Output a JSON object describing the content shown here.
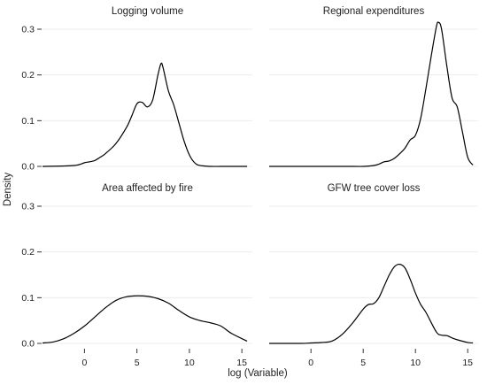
{
  "chart_data": {
    "type": "line",
    "layout": "facet-2x2",
    "xlabel": "log (Variable)",
    "ylabel": "Density",
    "xlim": [
      -4,
      16
    ],
    "ylim": [
      0,
      0.3
    ],
    "x_ticks": [
      0,
      5,
      10,
      15
    ],
    "y_ticks": [
      0.0,
      0.1,
      0.2,
      0.3
    ],
    "y_tick_labels": [
      "0.0",
      "0.1",
      "0.2",
      "0.3"
    ],
    "x_axis_shown_on": "bottom-row",
    "y_axis_shown_on": "left-column",
    "grid": "horizontal-light",
    "panels": [
      {
        "title": "Logging volume",
        "x": [
          -4,
          -1,
          0,
          0.5,
          1,
          1.5,
          2,
          3,
          4,
          4.5,
          5,
          5.5,
          6,
          6.5,
          7,
          7.3,
          7.5,
          8,
          8.5,
          9,
          9.5,
          10,
          10.5,
          11,
          12,
          13,
          14,
          15.5
        ],
        "y": [
          0,
          0.002,
          0.008,
          0.01,
          0.013,
          0.02,
          0.028,
          0.05,
          0.085,
          0.11,
          0.137,
          0.14,
          0.13,
          0.145,
          0.2,
          0.225,
          0.215,
          0.165,
          0.135,
          0.095,
          0.055,
          0.025,
          0.008,
          0.002,
          0,
          0,
          0,
          0
        ]
      },
      {
        "title": "Regional expenditures",
        "x": [
          -4,
          0,
          4,
          5,
          6,
          6.5,
          7,
          7.5,
          8,
          8.5,
          9,
          9.5,
          10,
          10.5,
          11,
          11.5,
          12,
          12.2,
          12.5,
          13,
          13.5,
          14,
          14.5,
          15,
          15.5
        ],
        "y": [
          0,
          0,
          0,
          0,
          0.002,
          0.005,
          0.01,
          0.012,
          0.018,
          0.028,
          0.04,
          0.058,
          0.068,
          0.105,
          0.17,
          0.24,
          0.305,
          0.315,
          0.3,
          0.22,
          0.15,
          0.13,
          0.075,
          0.02,
          0.003
        ]
      },
      {
        "title": "Area affected by fire",
        "x": [
          -4,
          -3,
          -2,
          -1,
          0,
          1,
          2,
          3,
          4,
          5,
          6,
          7,
          8,
          9,
          10,
          11,
          12,
          13,
          14,
          15.5
        ],
        "y": [
          0.001,
          0.003,
          0.01,
          0.022,
          0.038,
          0.058,
          0.078,
          0.094,
          0.102,
          0.104,
          0.103,
          0.098,
          0.088,
          0.072,
          0.058,
          0.05,
          0.045,
          0.038,
          0.022,
          0.005
        ]
      },
      {
        "title": "GFW tree cover loss",
        "x": [
          -4,
          -1,
          0,
          1,
          2,
          3,
          4,
          5,
          5.5,
          6,
          6.5,
          7,
          7.5,
          8,
          8.5,
          9,
          9.5,
          10,
          10.5,
          11,
          12,
          12.5,
          13,
          13.5,
          14,
          15,
          15.5
        ],
        "y": [
          0,
          0,
          0.001,
          0.002,
          0.005,
          0.02,
          0.045,
          0.075,
          0.085,
          0.087,
          0.1,
          0.125,
          0.15,
          0.168,
          0.173,
          0.165,
          0.14,
          0.11,
          0.085,
          0.068,
          0.025,
          0.018,
          0.017,
          0.012,
          0.008,
          0.002,
          0.001
        ]
      }
    ]
  }
}
